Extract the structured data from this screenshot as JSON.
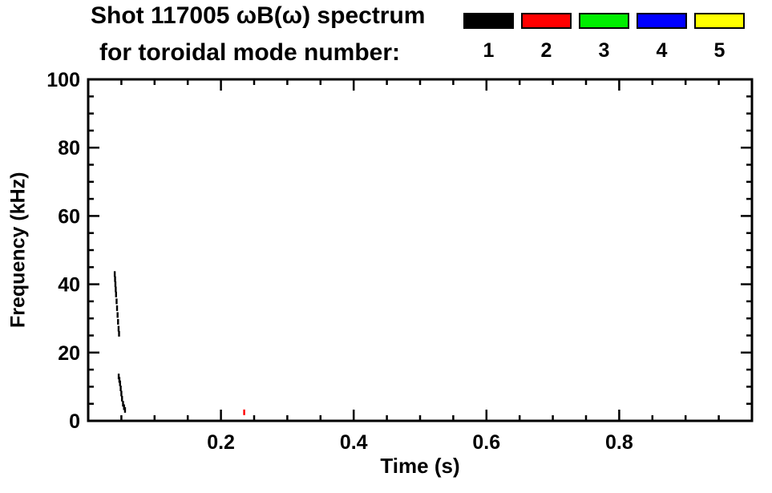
{
  "header": {
    "line1": "Shot 117005 ωB(ω) spectrum",
    "line2": "for toroidal mode number:"
  },
  "legend": {
    "items": [
      {
        "label": "1",
        "color": "#000000"
      },
      {
        "label": "2",
        "color": "#ff0000"
      },
      {
        "label": "3",
        "color": "#00ee00"
      },
      {
        "label": "4",
        "color": "#0000ff"
      },
      {
        "label": "5",
        "color": "#ffff00"
      }
    ]
  },
  "chart_data": {
    "type": "scatter",
    "title": "Shot 117005 ωB(ω) spectrum",
    "subtitle": "for toroidal mode number:",
    "xlabel": "Time (s)",
    "ylabel": "Frequency (kHz)",
    "xlim": [
      0.0,
      1.0
    ],
    "ylim": [
      0,
      100
    ],
    "xticks": [
      0.2,
      0.4,
      0.6,
      0.8
    ],
    "xtick_labels": [
      "0.2",
      "0.4",
      "0.6",
      "0.8"
    ],
    "x_minor_step": 0.05,
    "yticks": [
      0,
      20,
      40,
      60,
      80,
      100
    ],
    "ytick_labels": [
      "0",
      "20",
      "40",
      "60",
      "80",
      "100"
    ],
    "y_minor_step": 5,
    "grid": false,
    "legend_position": "top-right",
    "series": [
      {
        "name": "toroidal mode n=1",
        "color": "#000000",
        "points": [
          [
            0.04,
            43.0
          ],
          [
            0.0405,
            41.5
          ],
          [
            0.041,
            40.0
          ],
          [
            0.0415,
            38.5
          ],
          [
            0.042,
            37.0
          ],
          [
            0.0428,
            35.0
          ],
          [
            0.0435,
            33.0
          ],
          [
            0.0443,
            31.0
          ],
          [
            0.045,
            29.0
          ],
          [
            0.0458,
            27.0
          ],
          [
            0.0465,
            25.5
          ],
          [
            0.046,
            13.0
          ],
          [
            0.047,
            12.0
          ],
          [
            0.048,
            11.0
          ],
          [
            0.049,
            9.5
          ],
          [
            0.05,
            8.0
          ],
          [
            0.051,
            6.5
          ],
          [
            0.0525,
            5.0
          ],
          [
            0.054,
            4.0
          ],
          [
            0.0555,
            3.2
          ]
        ]
      },
      {
        "name": "toroidal mode n=2",
        "color": "#ff0000",
        "points": [
          [
            0.235,
            2.5
          ]
        ]
      },
      {
        "name": "toroidal mode n=3",
        "color": "#00ee00",
        "points": []
      },
      {
        "name": "toroidal mode n=4",
        "color": "#0000ff",
        "points": []
      },
      {
        "name": "toroidal mode n=5",
        "color": "#ffff00",
        "points": []
      }
    ]
  }
}
